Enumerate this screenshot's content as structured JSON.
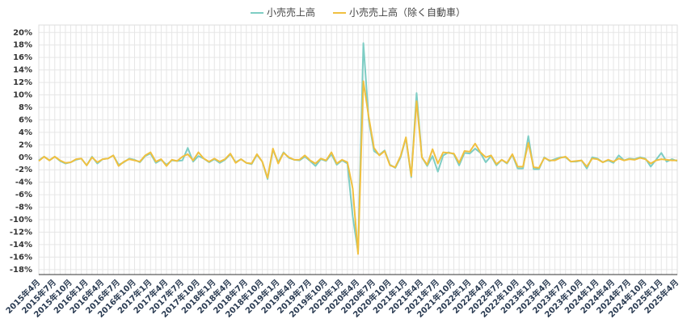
{
  "chart_data": {
    "type": "line",
    "categories": [
      "2015年4月",
      null,
      null,
      "2015年7月",
      null,
      null,
      "2015年10月",
      null,
      null,
      "2016年1月",
      null,
      null,
      "2016年4月",
      null,
      null,
      "2016年7月",
      null,
      null,
      "2016年10月",
      null,
      null,
      "2017年1月",
      null,
      null,
      "2017年4月",
      null,
      null,
      "2017年7月",
      null,
      null,
      "2017年10月",
      null,
      null,
      "2018年1月",
      null,
      null,
      "2018年4月",
      null,
      null,
      "2018年7月",
      null,
      null,
      "2018年10月",
      null,
      null,
      "2019年1月",
      null,
      null,
      "2019年4月",
      null,
      null,
      "2019年7月",
      null,
      null,
      "2019年10月",
      null,
      null,
      "2020年1月",
      null,
      null,
      "2020年4月",
      null,
      null,
      "2020年7月",
      null,
      null,
      "2020年10月",
      null,
      null,
      "2021年1月",
      null,
      null,
      "2021年4月",
      null,
      null,
      "2021年7月",
      null,
      null,
      "2021年10月",
      null,
      null,
      "2022年1月",
      null,
      null,
      "2022年4月",
      null,
      null,
      "2022年7月",
      null,
      null,
      "2022年10月",
      null,
      null,
      "2023年1月",
      null,
      null,
      "2023年4月",
      null,
      null,
      "2023年7月",
      null,
      null,
      "2023年10月",
      null,
      null,
      "2024年1月",
      null,
      null,
      "2024年4月",
      null,
      null,
      "2024年7月",
      null,
      null,
      "2024年10月",
      null,
      null,
      "2025年1月",
      null,
      null,
      "2025年4月"
    ],
    "series": [
      {
        "name": "小売売上高",
        "color": "#7ecdc4",
        "values": [
          -0.5,
          0.1,
          -0.5,
          0.1,
          -0.6,
          -1.0,
          -0.8,
          -0.4,
          -0.2,
          -1.3,
          0.1,
          -1.0,
          -0.3,
          -0.2,
          0.3,
          -1.2,
          -0.8,
          -0.2,
          -0.4,
          -0.8,
          0.2,
          0.6,
          -0.9,
          -0.4,
          -1.2,
          -0.5,
          -0.6,
          -0.5,
          1.5,
          -0.7,
          0.2,
          -0.2,
          -0.8,
          -0.3,
          -0.9,
          -0.4,
          0.5,
          -0.8,
          -0.3,
          -0.9,
          -1.1,
          0.4,
          -0.7,
          -3.5,
          1.2,
          -0.8,
          0.8,
          -0.1,
          -0.4,
          -0.5,
          0.1,
          -0.6,
          -1.4,
          -0.3,
          -0.6,
          0.5,
          -1.2,
          -0.5,
          -1.0,
          -9.5,
          -15.2,
          18.3,
          6.0,
          1.0,
          0.4,
          1.1,
          -1.2,
          -1.7,
          0.0,
          3.1,
          -3.2,
          10.3,
          0.0,
          -1.4,
          0.2,
          -2.3,
          0.3,
          0.8,
          0.5,
          -1.3,
          0.7,
          0.6,
          1.4,
          0.7,
          -0.8,
          0.2,
          -1.3,
          -0.4,
          -1.0,
          0.4,
          -1.8,
          -1.8,
          3.4,
          -1.9,
          -1.9,
          0.0,
          -0.6,
          -0.3,
          0.0,
          0.0,
          -0.7,
          -0.7,
          -0.5,
          -1.8,
          0.0,
          -0.2,
          -0.8,
          -0.5,
          -0.9,
          0.3,
          -0.5,
          -0.2,
          -0.3,
          0.0,
          -0.2,
          -1.5,
          -0.4,
          0.7,
          -0.7,
          -0.3,
          -0.6
        ]
      },
      {
        "name": "小売売上高（除く自動車）",
        "color": "#f0c040",
        "values": [
          -0.6,
          0.1,
          -0.5,
          0.1,
          -0.5,
          -0.9,
          -0.8,
          -0.3,
          -0.2,
          -1.3,
          0.0,
          -0.8,
          -0.3,
          -0.2,
          0.3,
          -1.4,
          -0.7,
          -0.3,
          -0.5,
          -0.7,
          0.3,
          0.8,
          -0.7,
          -0.3,
          -1.4,
          -0.4,
          -0.6,
          0.1,
          0.5,
          -0.5,
          0.8,
          -0.2,
          -0.7,
          -0.2,
          -0.7,
          -0.3,
          0.6,
          -0.9,
          -0.3,
          -0.9,
          -1.0,
          0.5,
          -0.7,
          -3.3,
          1.4,
          -1.0,
          0.7,
          0.0,
          -0.4,
          -0.4,
          0.3,
          -0.5,
          -1.0,
          -0.2,
          -0.5,
          0.8,
          -1.0,
          -0.4,
          -0.8,
          -5.0,
          -15.5,
          12.2,
          6.5,
          1.5,
          0.3,
          1.0,
          -1.3,
          -1.6,
          0.2,
          3.2,
          -3.0,
          9.0,
          0.0,
          -1.2,
          1.3,
          -1.0,
          0.8,
          0.7,
          0.6,
          -0.9,
          1.0,
          0.9,
          2.2,
          0.8,
          0.0,
          0.3,
          -1.1,
          -0.4,
          -0.9,
          0.5,
          -1.5,
          -1.5,
          2.3,
          -1.6,
          -1.7,
          -0.1,
          -0.5,
          -0.5,
          -0.1,
          0.1,
          -0.7,
          -0.6,
          -0.5,
          -1.5,
          -0.2,
          -0.3,
          -0.8,
          -0.4,
          -0.7,
          -0.2,
          -0.5,
          -0.3,
          -0.4,
          -0.1,
          -0.3,
          -1.0,
          -0.5,
          -0.3,
          -0.4,
          -0.5,
          -0.5
        ]
      }
    ],
    "ylim": [
      -18.8,
      21.2
    ],
    "yticks": [
      {
        "value": -18,
        "label": "-18%"
      },
      {
        "value": -16,
        "label": "-16%"
      },
      {
        "value": -14,
        "label": "-14%"
      },
      {
        "value": -12,
        "label": "-12%"
      },
      {
        "value": -10,
        "label": "-10%"
      },
      {
        "value": -8,
        "label": "-8%"
      },
      {
        "value": -6,
        "label": "-6%"
      },
      {
        "value": -4,
        "label": "-4%"
      },
      {
        "value": -2,
        "label": "-2%"
      },
      {
        "value": 0,
        "label": "0%"
      },
      {
        "value": 2,
        "label": "2%"
      },
      {
        "value": 4,
        "label": "4%"
      },
      {
        "value": 6,
        "label": "6%"
      },
      {
        "value": 8,
        "label": "8%"
      },
      {
        "value": 10,
        "label": "10%"
      },
      {
        "value": 12,
        "label": "12%"
      },
      {
        "value": 14,
        "label": "14%"
      },
      {
        "value": 16,
        "label": "16%"
      },
      {
        "value": 18,
        "label": "18%"
      },
      {
        "value": 20,
        "label": "20%"
      }
    ],
    "grid": true,
    "legend": "top"
  }
}
